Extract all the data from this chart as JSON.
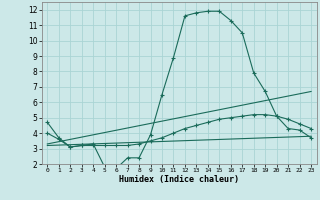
{
  "xlabel": "Humidex (Indice chaleur)",
  "bg_color": "#cce8e8",
  "grid_color": "#aad4d4",
  "line_color": "#1a6b5a",
  "xlim": [
    -0.5,
    23.5
  ],
  "ylim": [
    2,
    12.5
  ],
  "xticks": [
    0,
    1,
    2,
    3,
    4,
    5,
    6,
    7,
    8,
    9,
    10,
    11,
    12,
    13,
    14,
    15,
    16,
    17,
    18,
    19,
    20,
    21,
    22,
    23
  ],
  "yticks": [
    2,
    3,
    4,
    5,
    6,
    7,
    8,
    9,
    10,
    11,
    12
  ],
  "line1_x": [
    0,
    1,
    2,
    3,
    4,
    5,
    6,
    7,
    8,
    9,
    10,
    11,
    12,
    13,
    14,
    15,
    16,
    17,
    18,
    19,
    20,
    21,
    22,
    23
  ],
  "line1_y": [
    4.7,
    3.7,
    3.1,
    3.2,
    3.3,
    1.8,
    1.7,
    2.4,
    2.4,
    3.9,
    6.5,
    8.9,
    11.6,
    11.8,
    11.9,
    11.9,
    11.3,
    10.5,
    7.9,
    6.7,
    5.1,
    4.3,
    4.2,
    3.7
  ],
  "line2_x": [
    0,
    23
  ],
  "line2_y": [
    3.3,
    6.7
  ],
  "line3_x": [
    0,
    23
  ],
  "line3_y": [
    3.2,
    3.8
  ],
  "line4_x": [
    0,
    1,
    2,
    3,
    4,
    5,
    6,
    7,
    8,
    9,
    10,
    11,
    12,
    13,
    14,
    15,
    16,
    17,
    18,
    19,
    20,
    21,
    22,
    23
  ],
  "line4_y": [
    4.0,
    3.6,
    3.1,
    3.2,
    3.2,
    3.2,
    3.2,
    3.2,
    3.3,
    3.5,
    3.7,
    4.0,
    4.3,
    4.5,
    4.7,
    4.9,
    5.0,
    5.1,
    5.2,
    5.2,
    5.1,
    4.9,
    4.6,
    4.3
  ]
}
